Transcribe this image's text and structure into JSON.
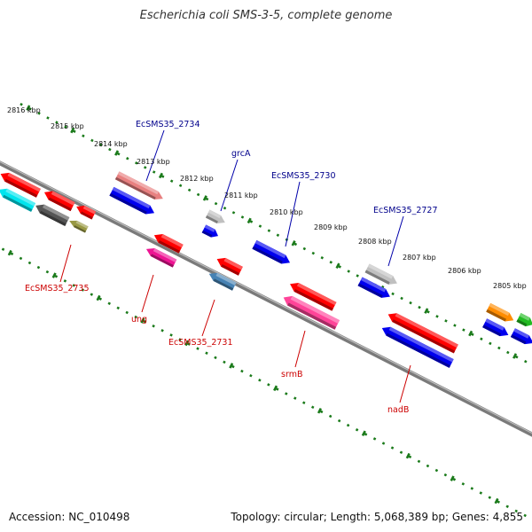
{
  "title": "Escherichia coli SMS-3-5, complete genome",
  "footer": {
    "accession": "Accession: NC_010498",
    "summary": "Topology: circular; Length: 5,068,389 bp; Genes: 4,855"
  },
  "ticks": [
    "2816 kbp",
    "2815 kbp",
    "2814 kbp",
    "2813 kbp",
    "2812 kbp",
    "2811 kbp",
    "2810 kbp",
    "2809 kbp",
    "2808 kbp",
    "2807 kbp",
    "2806 kbp",
    "2805 kbp"
  ],
  "genes_forward": [
    {
      "color": "#e88080",
      "label": "EcSMS35_2734"
    },
    {
      "color": "#0000ee",
      "label": ""
    },
    {
      "color": "#c0c0c0",
      "label": "grcA"
    },
    {
      "color": "#0000ee",
      "label": ""
    },
    {
      "color": "#0000ee",
      "label": "EcSMS35_2730"
    },
    {
      "color": "#c0c0c0",
      "label": "EcSMS35_2727"
    },
    {
      "color": "#0000ee",
      "label": ""
    },
    {
      "color": "#ff8c00",
      "label": ""
    },
    {
      "color": "#22bb22",
      "label": ""
    },
    {
      "color": "#0000ee",
      "label": ""
    },
    {
      "color": "#0000ee",
      "label": ""
    }
  ],
  "genes_reverse": [
    {
      "color": "#ff0000",
      "label": ""
    },
    {
      "color": "#00e5ee",
      "label": ""
    },
    {
      "color": "#ff0000",
      "label": ""
    },
    {
      "color": "#555555",
      "label": "EcSMS35_2735"
    },
    {
      "color": "#ff0000",
      "label": ""
    },
    {
      "color": "#999944",
      "label": ""
    },
    {
      "color": "#ff0000",
      "label": ""
    },
    {
      "color": "#ee1493",
      "label": "ung"
    },
    {
      "color": "#ff0000",
      "label": ""
    },
    {
      "color": "#4682b4",
      "label": "EcSMS35_2731"
    },
    {
      "color": "#ff0000",
      "label": ""
    },
    {
      "color": "#ff4499",
      "label": "srmB"
    },
    {
      "color": "#ff0000",
      "label": ""
    },
    {
      "color": "#0000ee",
      "label": "nadB"
    }
  ]
}
